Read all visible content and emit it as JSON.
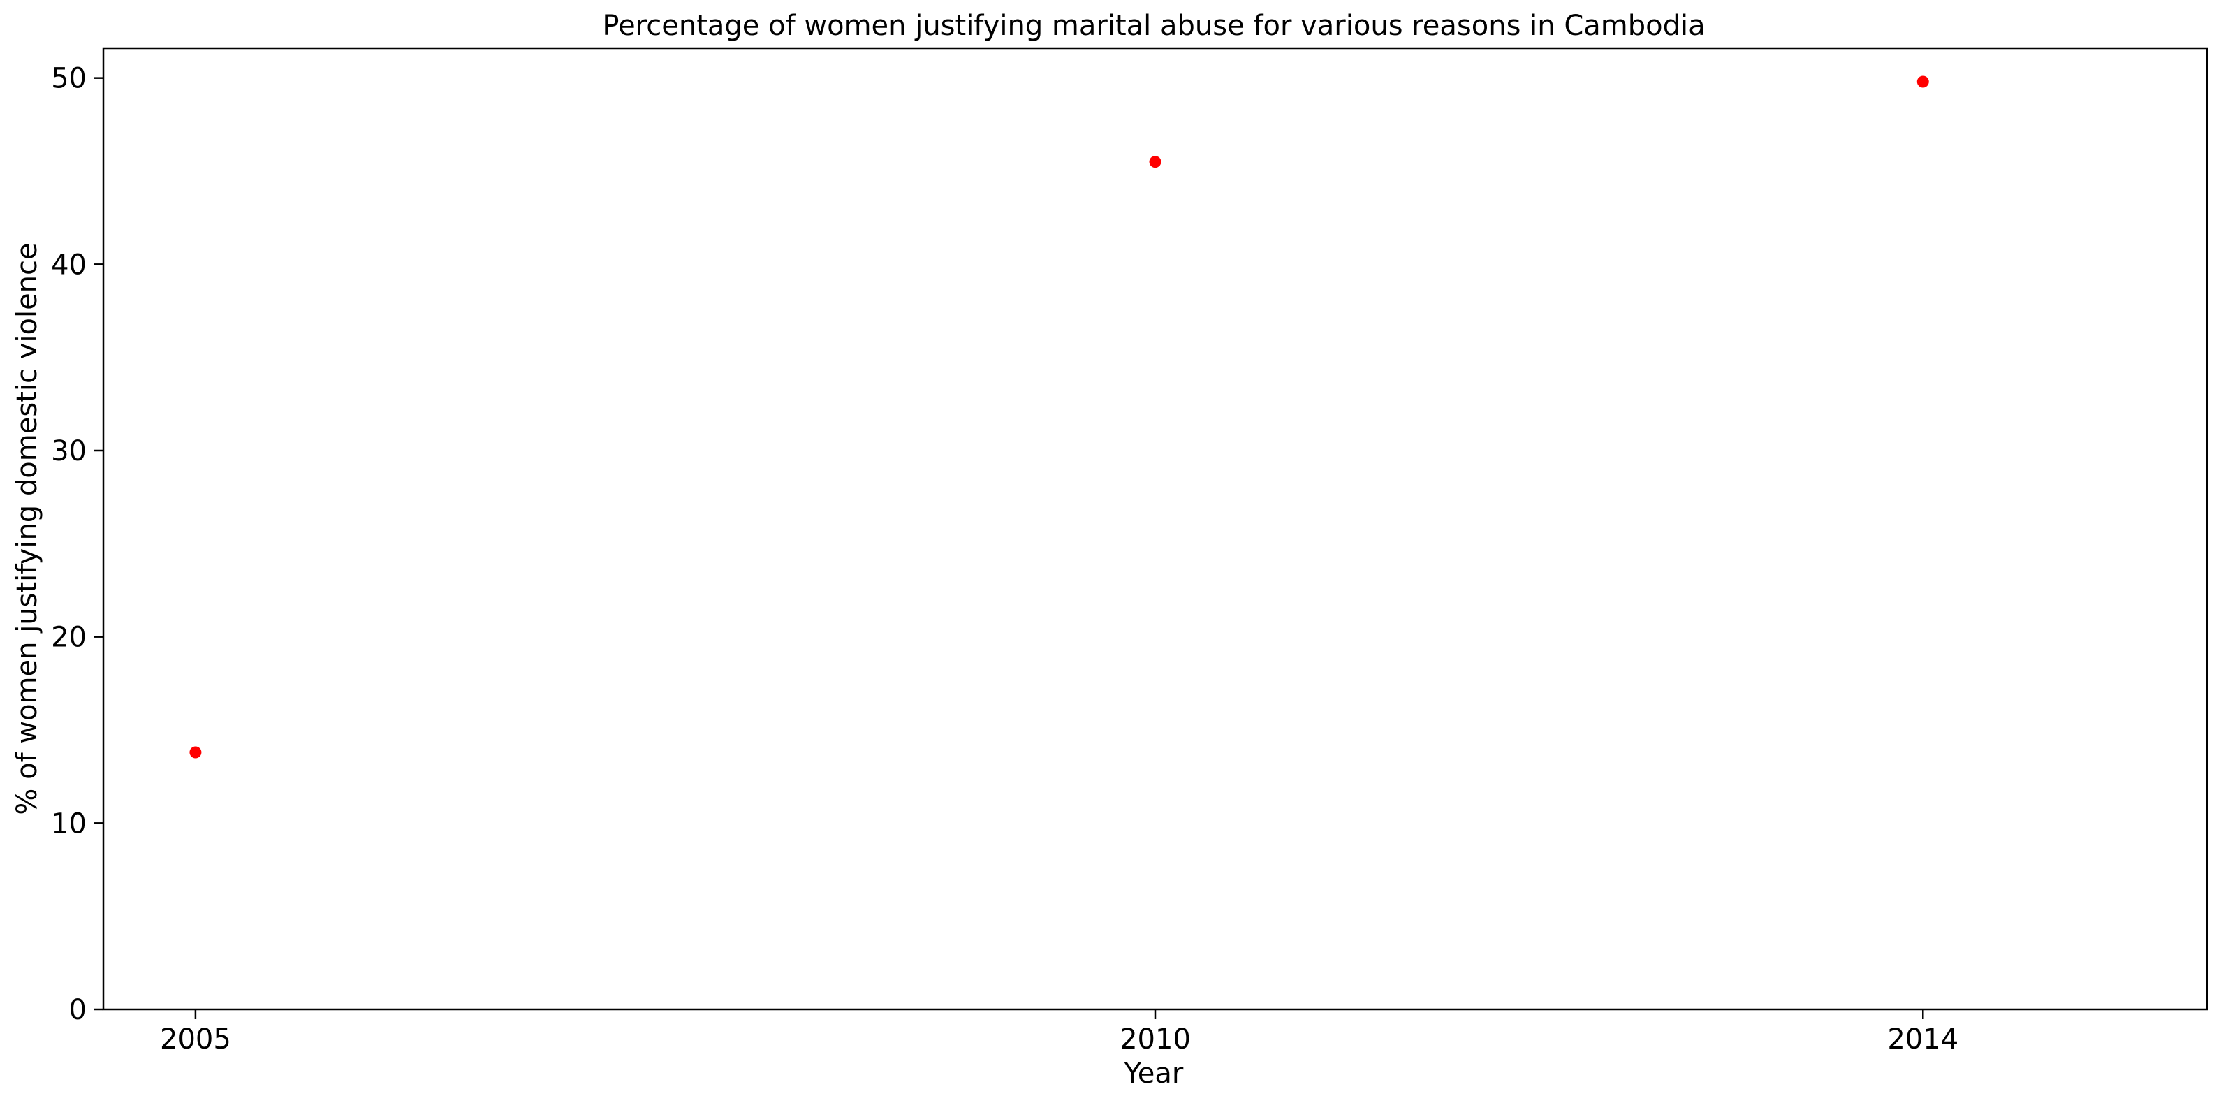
{
  "chart_data": {
    "type": "scatter",
    "title": "Percentage of women justifying marital abuse for various reasons in Cambodia",
    "xlabel": "Year",
    "ylabel": "% of women justifying domestic violence",
    "x": [
      2005,
      2010,
      2014
    ],
    "y": [
      13.8,
      45.5,
      49.8
    ],
    "xticks": [
      "2005",
      "2010",
      "2014"
    ],
    "yticks": [
      "0",
      "10",
      "20",
      "30",
      "40",
      "50"
    ],
    "xlim": [
      2004.52,
      2015.48
    ],
    "ylim": [
      0,
      51.6
    ],
    "grid": false,
    "marker_color": "#ff0000"
  }
}
